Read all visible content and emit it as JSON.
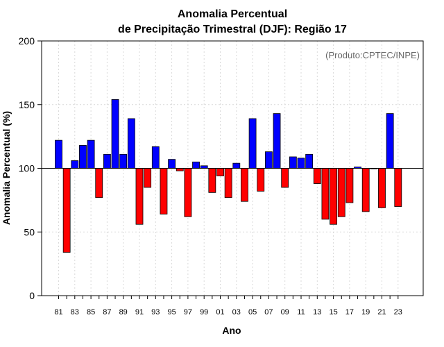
{
  "chart_data": {
    "type": "bar",
    "title_line1": "Anomalia Percentual",
    "title_line2": "de Precipitação Trimestral (DJF): Região 17",
    "xlabel": "Ano",
    "ylabel": "Anomalia Percentual (%)",
    "credit": "(Produto:CPTEC/INPE)",
    "ylim": [
      0,
      200
    ],
    "yticks": [
      0,
      50,
      100,
      150,
      200
    ],
    "baseline": 100,
    "grid": true,
    "colors": {
      "above": "#0000ff",
      "below": "#ff0000",
      "outline": "#000000",
      "grid": "#d9d9d9"
    },
    "categories": [
      "81",
      "82",
      "83",
      "84",
      "85",
      "86",
      "87",
      "88",
      "89",
      "90",
      "91",
      "92",
      "93",
      "94",
      "95",
      "96",
      "97",
      "98",
      "99",
      "00",
      "01",
      "02",
      "03",
      "04",
      "05",
      "06",
      "07",
      "08",
      "09",
      "10",
      "11",
      "12",
      "13",
      "14",
      "15",
      "16",
      "17",
      "18",
      "19",
      "20",
      "21",
      "22",
      "23"
    ],
    "tick_labels": [
      "81",
      "83",
      "85",
      "87",
      "89",
      "91",
      "93",
      "95",
      "97",
      "99",
      "01",
      "03",
      "05",
      "07",
      "09",
      "11",
      "13",
      "15",
      "17",
      "19",
      "21",
      "23"
    ],
    "values": [
      122,
      34,
      106,
      118,
      122,
      77,
      111,
      154,
      111,
      139,
      56,
      85,
      117,
      64,
      107,
      98,
      62,
      105,
      102,
      81,
      94,
      77,
      104,
      74,
      139,
      82,
      113,
      143,
      85,
      109,
      108,
      111,
      88,
      60,
      56,
      62,
      73,
      101,
      66,
      100,
      69,
      143,
      70
    ]
  }
}
